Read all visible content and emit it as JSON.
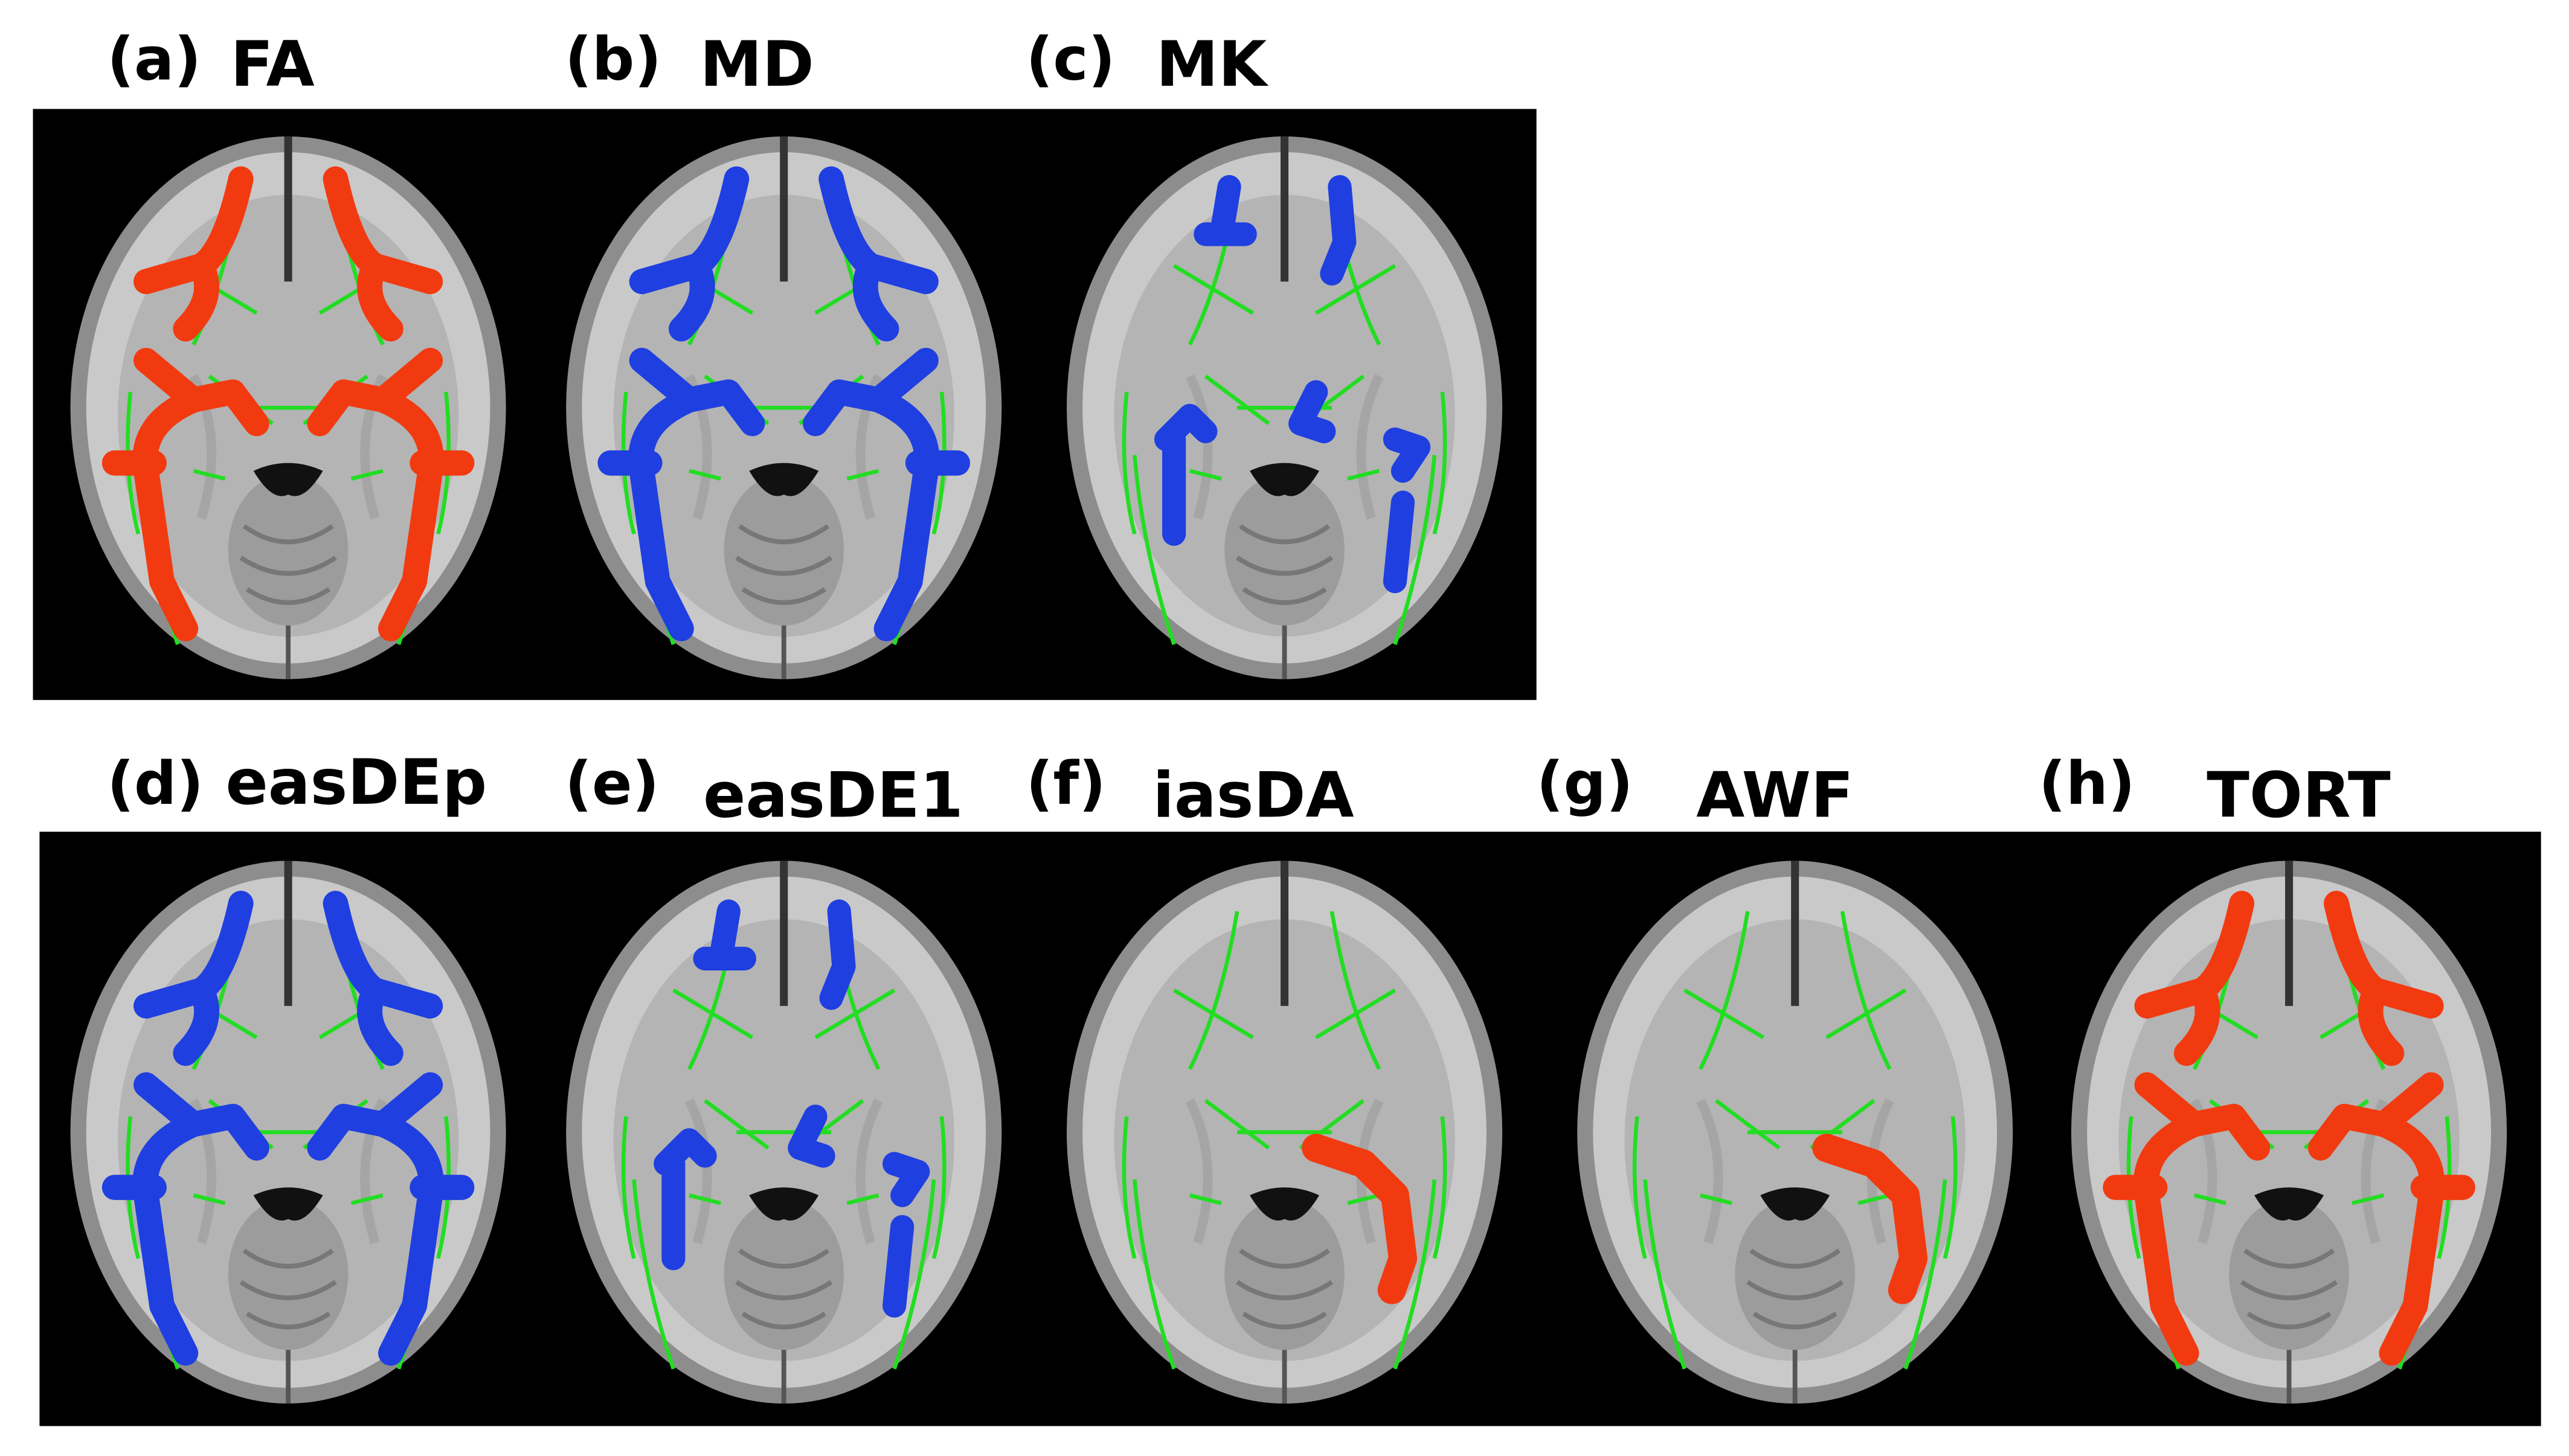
{
  "panels": [
    {
      "label": "(a)",
      "title": "FA"
    },
    {
      "label": "(b)",
      "title": "MD"
    },
    {
      "label": "(c)",
      "title": "MK"
    },
    {
      "label": "(d)",
      "title": "easDEp"
    },
    {
      "label": "(e)",
      "title": "easDE1"
    },
    {
      "label": "(f)",
      "title": "iasDA"
    },
    {
      "label": "(g)",
      "title": "AWF"
    },
    {
      "label": "(h)",
      "title": "TORT"
    }
  ]
}
